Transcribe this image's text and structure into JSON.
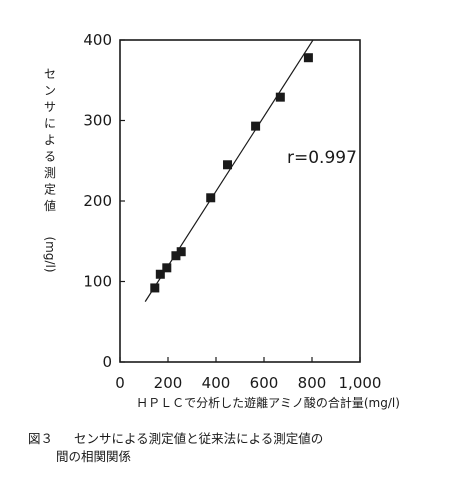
{
  "chart_data": {
    "type": "scatter",
    "xlabel": "ＨＰＬＣで分析した遊離アミノ酸の合計量(mg/l)",
    "ylabel": "センサによる測定値",
    "ylabel_unit": "(mg/l)",
    "xlim": [
      0,
      1000
    ],
    "ylim": [
      0,
      400
    ],
    "xticks": [
      0,
      200,
      400,
      600,
      800,
      1000
    ],
    "xtick_labels": [
      "0",
      "200",
      "400",
      "600",
      "800",
      "1,000"
    ],
    "yticks": [
      0,
      100,
      200,
      300,
      400
    ],
    "ytick_labels": [
      "0",
      "100",
      "200",
      "300",
      "400"
    ],
    "grid": false,
    "annotation": "r=0.997",
    "points": [
      {
        "x": 145,
        "y": 92
      },
      {
        "x": 168,
        "y": 109
      },
      {
        "x": 195,
        "y": 117
      },
      {
        "x": 233,
        "y": 132
      },
      {
        "x": 255,
        "y": 137
      },
      {
        "x": 378,
        "y": 204
      },
      {
        "x": 448,
        "y": 245
      },
      {
        "x": 565,
        "y": 293
      },
      {
        "x": 668,
        "y": 329
      },
      {
        "x": 785,
        "y": 378
      }
    ],
    "regression_line": {
      "x": [
        105,
        815
      ],
      "y": [
        75,
        405
      ]
    }
  },
  "caption": {
    "label": "図３",
    "line1": "センサによる測定値と従来法による測定値の",
    "line2": "間の相関関係"
  }
}
